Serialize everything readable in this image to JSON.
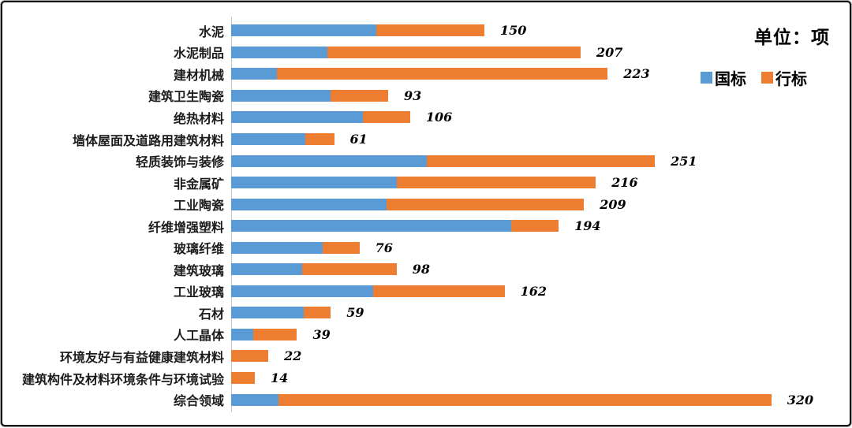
{
  "unit_title": "单位：项",
  "legend": {
    "items": [
      {
        "label": "国标",
        "color": "#5B9BD5"
      },
      {
        "label": "行标",
        "color": "#ED7D31"
      }
    ]
  },
  "chart_data": {
    "type": "bar",
    "orientation": "horizontal",
    "stacked": true,
    "title": "单位：项",
    "xlabel": "",
    "ylabel": "",
    "xlim": [
      0,
      330
    ],
    "grid": false,
    "legend_position": "top-right",
    "categories": [
      "水泥",
      "水泥制品",
      "建材机械",
      "建筑卫生陶瓷",
      "绝热材料",
      "墙体屋面及道路用建筑材料",
      "轻质装饰与装修",
      "非金属矿",
      "工业陶瓷",
      "纤维增强塑料",
      "玻璃纤维",
      "建筑玻璃",
      "工业玻璃",
      "石材",
      "人工晶体",
      "环境友好与有益健康建筑材料",
      "建筑构件及材料环境条件与环境试验",
      "综合领域"
    ],
    "series": [
      {
        "name": "国标",
        "color": "#5B9BD5",
        "values": [
          86,
          57,
          27,
          59,
          78,
          44,
          116,
          98,
          92,
          166,
          54,
          42,
          84,
          43,
          13,
          0,
          0,
          28
        ]
      },
      {
        "name": "行标",
        "color": "#ED7D31",
        "values": [
          64,
          150,
          196,
          34,
          28,
          17,
          135,
          118,
          117,
          28,
          22,
          56,
          78,
          16,
          26,
          22,
          14,
          292
        ]
      }
    ],
    "totals": [
      150,
      207,
      223,
      93,
      106,
      61,
      251,
      216,
      209,
      194,
      76,
      98,
      162,
      59,
      39,
      22,
      14,
      320
    ]
  }
}
